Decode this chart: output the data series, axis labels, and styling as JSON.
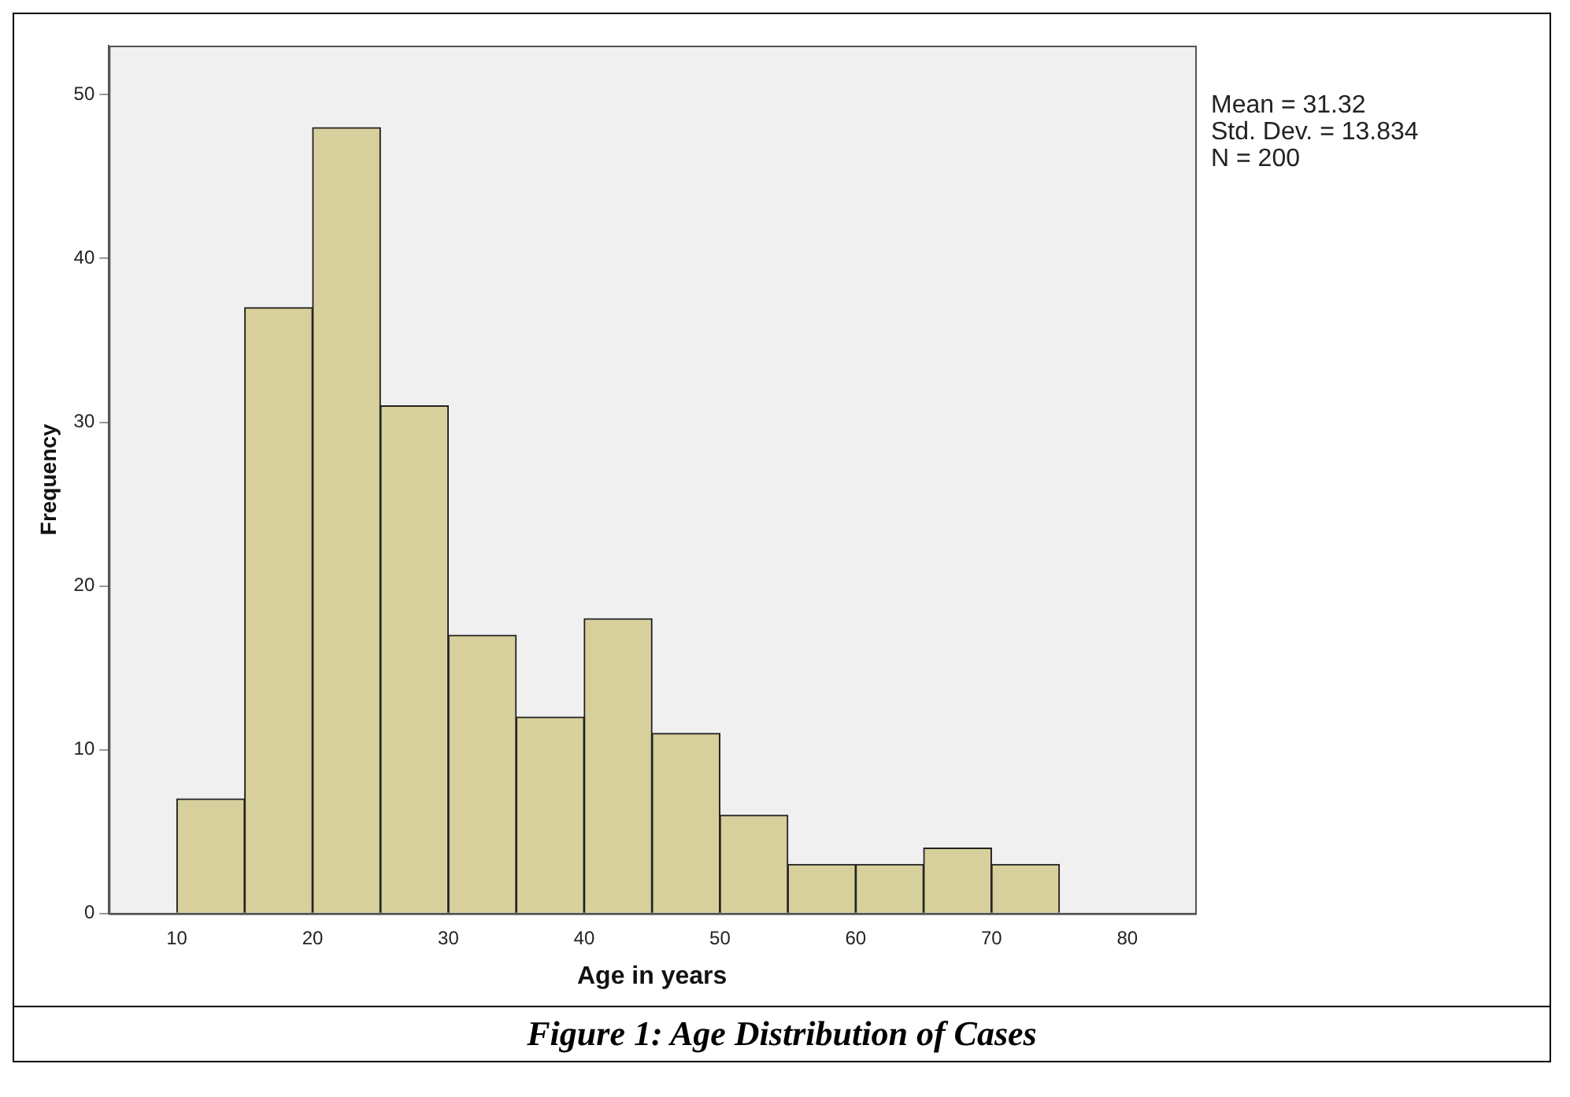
{
  "chart_data": {
    "type": "histogram",
    "title": "Figure 1: Age Distribution of Cases",
    "xlabel": "Age in years",
    "ylabel": "Frequency",
    "bins": [
      10,
      15,
      20,
      25,
      30,
      35,
      40,
      45,
      50,
      55,
      60,
      65,
      70,
      75
    ],
    "values": [
      7,
      37,
      48,
      31,
      17,
      12,
      18,
      11,
      6,
      3,
      3,
      4,
      3
    ],
    "color": "#d8d09c",
    "xlim": [
      5,
      85
    ],
    "xticks": [
      10,
      20,
      30,
      40,
      50,
      60,
      70,
      80
    ],
    "ylim": [
      0,
      53
    ],
    "yticks": [
      0,
      10,
      20,
      30,
      40,
      50
    ],
    "grid": false,
    "legend": false,
    "annotations": [
      "Mean = 31.32",
      "Std. Dev. = 13.834",
      "N = 200"
    ]
  }
}
